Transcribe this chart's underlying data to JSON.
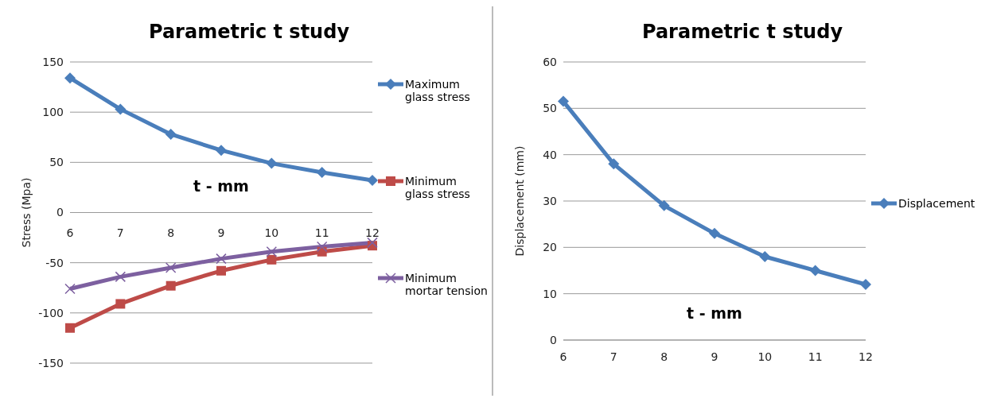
{
  "chart_data": [
    {
      "type": "line",
      "title": "Parametric t study",
      "xlabel": "t - mm",
      "ylabel": "Stress (Mpa)",
      "categories": [
        "6",
        "7",
        "8",
        "9",
        "10",
        "11",
        "12"
      ],
      "ylim": [
        -150,
        150
      ],
      "yticks": [
        -150,
        -100,
        -50,
        0,
        50,
        100,
        150
      ],
      "grid": "y",
      "legend": "right",
      "series": [
        {
          "name": "Maximum glass stress",
          "color": "#4a7ebb",
          "marker": "diamond",
          "values": [
            134,
            103,
            78,
            62,
            49,
            40,
            32
          ]
        },
        {
          "name": "Minimum glass stress",
          "color": "#be4b48",
          "marker": "square",
          "values": [
            -115,
            -91,
            -73,
            -58,
            -47,
            -39,
            -33
          ]
        },
        {
          "name": "Minimum mortar tension",
          "color": "#7d60a0",
          "marker": "cross",
          "values": [
            -76,
            -64,
            -55,
            -46,
            -39,
            -34,
            -30
          ]
        }
      ]
    },
    {
      "type": "line",
      "title": "Parametric t study",
      "xlabel": "t - mm",
      "ylabel": "Displacement (mm)",
      "categories": [
        "6",
        "7",
        "8",
        "9",
        "10",
        "11",
        "12"
      ],
      "ylim": [
        0,
        60
      ],
      "yticks": [
        0,
        10,
        20,
        30,
        40,
        50,
        60
      ],
      "grid": "y",
      "legend": "right",
      "series": [
        {
          "name": "Displacement",
          "color": "#4a7ebb",
          "marker": "diamond",
          "values": [
            51.5,
            38,
            29,
            23,
            18,
            15,
            12
          ]
        }
      ]
    }
  ]
}
